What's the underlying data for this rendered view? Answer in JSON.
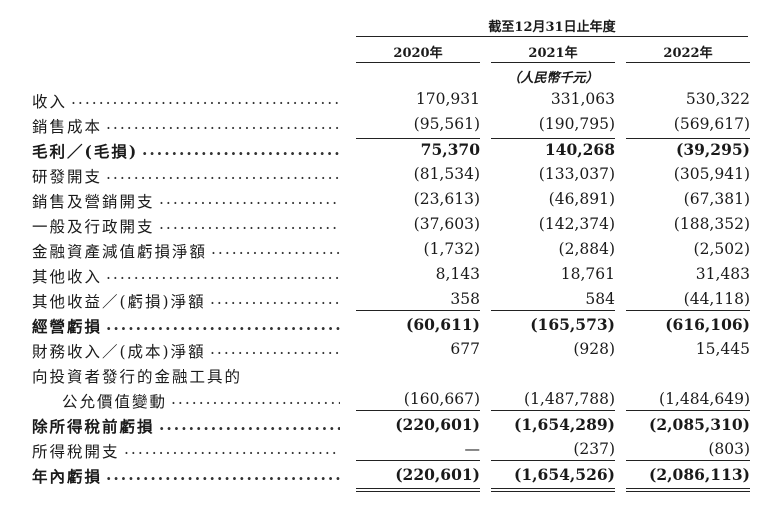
{
  "header": {
    "period": "截至12月31日止年度",
    "years": [
      "2020年",
      "2021年",
      "2022年"
    ],
    "unit": "（人民幣千元）"
  },
  "rows": [
    {
      "label": "收入",
      "values": [
        "170,931",
        "331,063",
        "530,322"
      ],
      "bold": false
    },
    {
      "label": "銷售成本",
      "values": [
        "(95,561)",
        "(190,795)",
        "(569,617)"
      ],
      "bold": false
    },
    {
      "label": "毛利／(毛損)",
      "values": [
        "75,370",
        "140,268",
        "(39,295)"
      ],
      "bold": true
    },
    {
      "label": "研發開支",
      "values": [
        "(81,534)",
        "(133,037)",
        "(305,941)"
      ],
      "bold": false
    },
    {
      "label": "銷售及營銷開支",
      "values": [
        "(23,613)",
        "(46,891)",
        "(67,381)"
      ],
      "bold": false
    },
    {
      "label": "一般及行政開支",
      "values": [
        "(37,603)",
        "(142,374)",
        "(188,352)"
      ],
      "bold": false
    },
    {
      "label": "金融資產減值虧損淨額",
      "values": [
        "(1,732)",
        "(2,884)",
        "(2,502)"
      ],
      "bold": false
    },
    {
      "label": "其他收入",
      "values": [
        "8,143",
        "18,761",
        "31,483"
      ],
      "bold": false
    },
    {
      "label": "其他收益／(虧損)淨額",
      "values": [
        "358",
        "584",
        "(44,118)"
      ],
      "bold": false
    },
    {
      "label": "經營虧損",
      "values": [
        "(60,611)",
        "(165,573)",
        "(616,106)"
      ],
      "bold": true
    },
    {
      "label": "財務收入／(成本)淨額",
      "values": [
        "677",
        "(928)",
        "15,445"
      ],
      "bold": false
    },
    {
      "label": "向投資者發行的金融工具的",
      "values": [
        "",
        "",
        ""
      ],
      "bold": false
    },
    {
      "label": "公允價值變動",
      "values": [
        "(160,667)",
        "(1,487,788)",
        "(1,484,649)"
      ],
      "bold": false
    },
    {
      "label": "除所得稅前虧損",
      "values": [
        "(220,601)",
        "(1,654,289)",
        "(2,085,310)"
      ],
      "bold": true
    },
    {
      "label": "所得稅開支",
      "values": [
        "—",
        "(237)",
        "(803)"
      ],
      "bold": false
    },
    {
      "label": "年內虧損",
      "values": [
        "(220,601)",
        "(1,654,526)",
        "(2,086,113)"
      ],
      "bold": true
    }
  ]
}
